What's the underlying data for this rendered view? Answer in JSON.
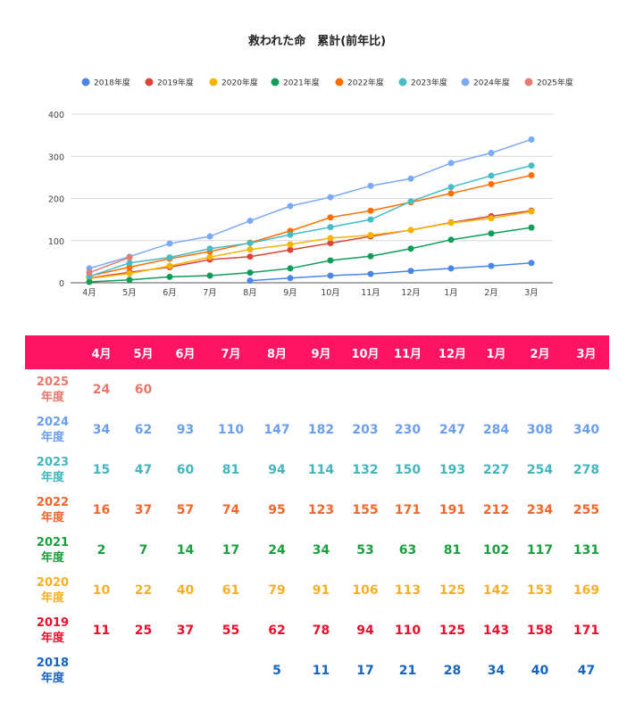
{
  "chart_data": {
    "type": "line",
    "title": "救われた命　累計(前年比)",
    "categories": [
      "4月",
      "5月",
      "6月",
      "7月",
      "8月",
      "9月",
      "10月",
      "11月",
      "12月",
      "1月",
      "2月",
      "3月"
    ],
    "ylim": [
      0,
      400
    ],
    "yticks": [
      0,
      100,
      200,
      300,
      400
    ],
    "grid": true,
    "legend_position": "top",
    "series": [
      {
        "name": "2018年度",
        "color": "#4a86e8",
        "values": [
          null,
          null,
          null,
          null,
          5,
          11,
          17,
          21,
          28,
          34,
          40,
          47
        ]
      },
      {
        "name": "2019年度",
        "color": "#db4437",
        "values": [
          11,
          25,
          37,
          55,
          62,
          78,
          94,
          110,
          125,
          143,
          158,
          171
        ]
      },
      {
        "name": "2020年度",
        "color": "#f4b400",
        "values": [
          10,
          22,
          40,
          61,
          79,
          91,
          106,
          113,
          125,
          142,
          153,
          169
        ]
      },
      {
        "name": "2021年度",
        "color": "#0f9d58",
        "values": [
          2,
          7,
          14,
          17,
          24,
          34,
          53,
          63,
          81,
          102,
          117,
          131
        ]
      },
      {
        "name": "2022年度",
        "color": "#ff6d01",
        "values": [
          16,
          37,
          57,
          74,
          95,
          123,
          155,
          171,
          191,
          212,
          234,
          255
        ]
      },
      {
        "name": "2023年度",
        "color": "#46bdc6",
        "values": [
          15,
          47,
          60,
          81,
          94,
          114,
          132,
          150,
          193,
          227,
          254,
          278
        ]
      },
      {
        "name": "2024年度",
        "color": "#7baaf7",
        "values": [
          34,
          62,
          93,
          110,
          147,
          182,
          203,
          230,
          247,
          284,
          308,
          340
        ]
      },
      {
        "name": "2025年度",
        "color": "#e67c73",
        "values": [
          24,
          60,
          null,
          null,
          null,
          null,
          null,
          null,
          null,
          null,
          null,
          null
        ]
      }
    ]
  },
  "table": {
    "header_color": "#ff1463",
    "months": [
      "4月",
      "5月",
      "6月",
      "7月",
      "8月",
      "9月",
      "10月",
      "11月",
      "12月",
      "1月",
      "2月",
      "3月"
    ],
    "rows": [
      {
        "year": "2025",
        "suffix": "年度",
        "color": "#e8776b",
        "values": [
          "24",
          "60",
          "",
          "",
          "",
          "",
          "",
          "",
          "",
          "",
          "",
          ""
        ]
      },
      {
        "year": "2024",
        "suffix": "年度",
        "color": "#6d9eeb",
        "values": [
          "34",
          "62",
          "93",
          "110",
          "147",
          "182",
          "203",
          "230",
          "247",
          "284",
          "308",
          "340"
        ]
      },
      {
        "year": "2023",
        "suffix": "年度",
        "color": "#45b5bd",
        "values": [
          "15",
          "47",
          "60",
          "81",
          "94",
          "114",
          "132",
          "150",
          "193",
          "227",
          "254",
          "278"
        ]
      },
      {
        "year": "2022",
        "suffix": "年度",
        "color": "#f2662b",
        "values": [
          "16",
          "37",
          "57",
          "74",
          "95",
          "123",
          "155",
          "171",
          "191",
          "212",
          "234",
          "255"
        ]
      },
      {
        "year": "2021",
        "suffix": "年度",
        "color": "#1b9e3e",
        "values": [
          "2",
          "7",
          "14",
          "17",
          "24",
          "34",
          "53",
          "63",
          "81",
          "102",
          "117",
          "131"
        ]
      },
      {
        "year": "2020",
        "suffix": "年度",
        "color": "#f6b026",
        "values": [
          "10",
          "22",
          "40",
          "61",
          "79",
          "91",
          "106",
          "113",
          "125",
          "142",
          "153",
          "169"
        ]
      },
      {
        "year": "2019",
        "suffix": "年度",
        "color": "#e8112d",
        "values": [
          "11",
          "25",
          "37",
          "55",
          "62",
          "78",
          "94",
          "110",
          "125",
          "143",
          "158",
          "171"
        ]
      },
      {
        "year": "2018",
        "suffix": "年度",
        "color": "#1565c0",
        "values": [
          "",
          "",
          "",
          "",
          "5",
          "11",
          "17",
          "21",
          "28",
          "34",
          "40",
          "47"
        ]
      }
    ]
  }
}
